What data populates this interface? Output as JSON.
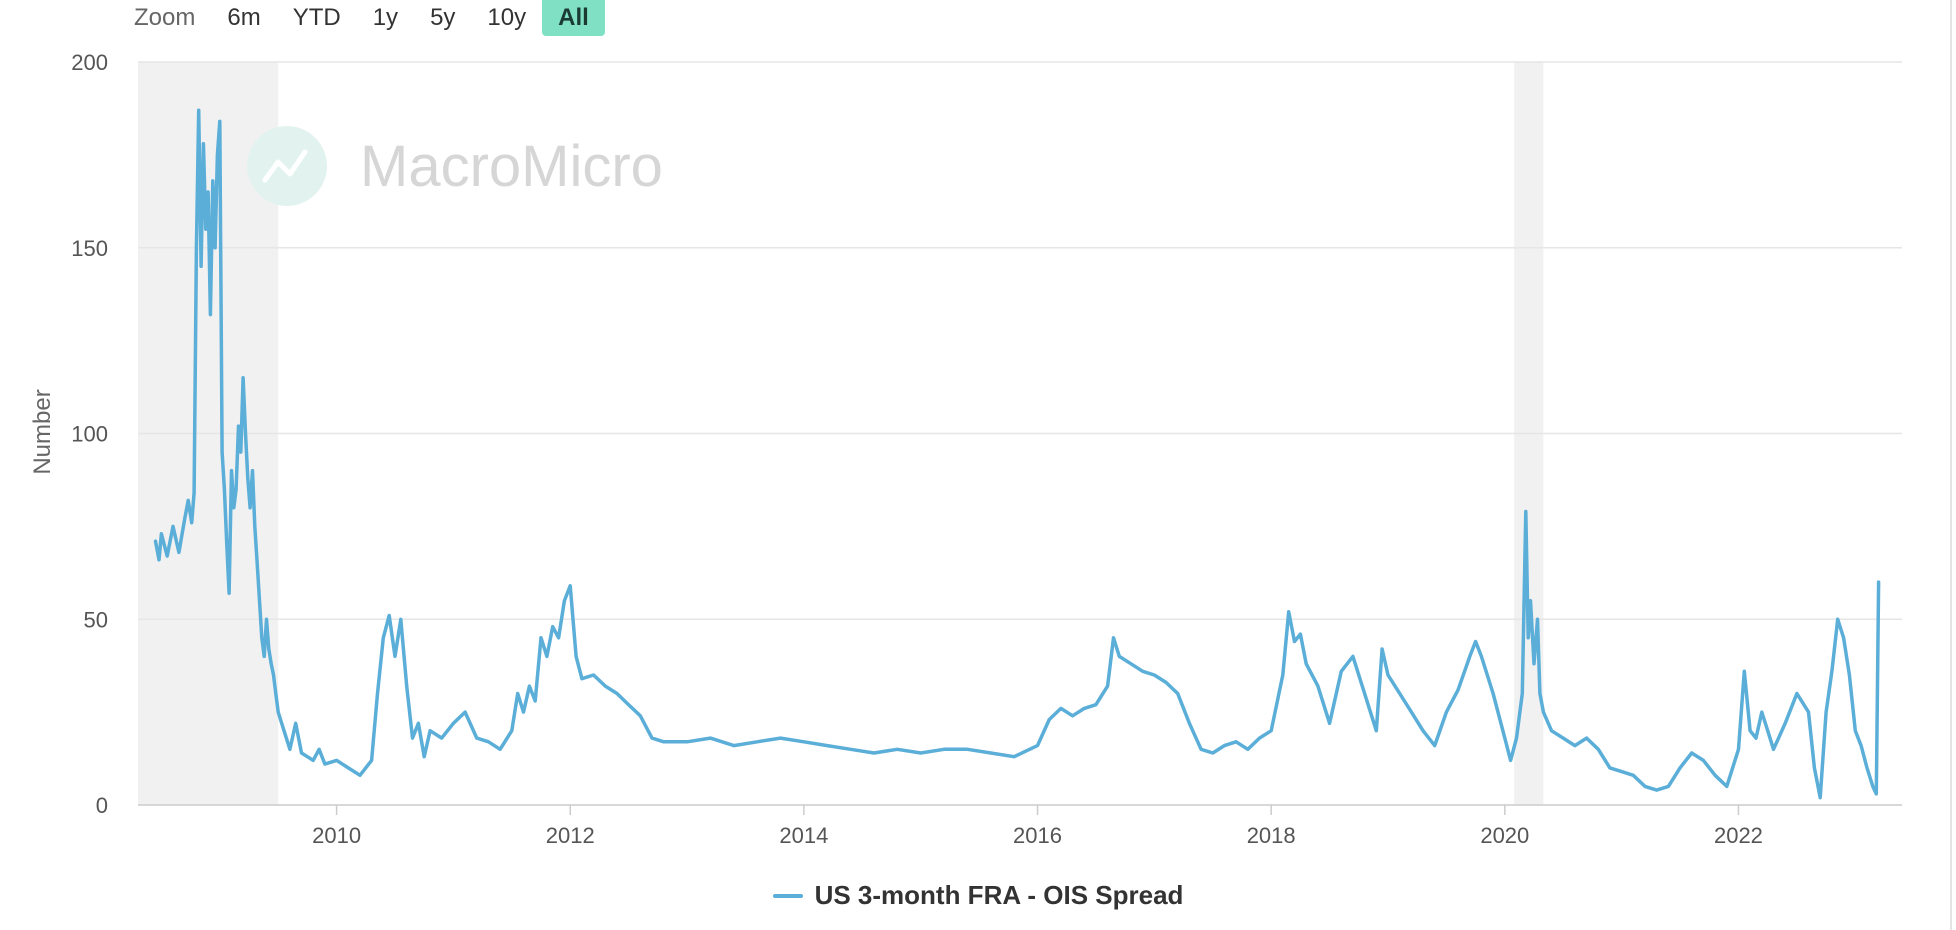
{
  "zoom": {
    "label": "Zoom",
    "buttons": [
      "6m",
      "YTD",
      "1y",
      "5y",
      "10y",
      "All"
    ],
    "active": "All"
  },
  "watermark": "MacroMicro",
  "colors": {
    "series": "#5aaed8",
    "recession": "#f1f1f1",
    "grid": "#e6e6e6",
    "active_zoom": "#7fe0c4"
  },
  "chart_data": {
    "type": "line",
    "title": "",
    "xlabel": "",
    "ylabel": "Number",
    "xlim": [
      2008.3,
      2023.4
    ],
    "ylim": [
      0,
      200
    ],
    "y_ticks": [
      0,
      50,
      100,
      150,
      200
    ],
    "x_ticks": [
      2010,
      2012,
      2014,
      2016,
      2018,
      2020,
      2022
    ],
    "grid": true,
    "legend_position": "bottom-center",
    "recession_bands": [
      [
        2008.3,
        2009.5
      ],
      [
        2020.08,
        2020.33
      ]
    ],
    "series": [
      {
        "name": "US 3-month FRA - OIS Spread",
        "color": "#5aaed8",
        "x": [
          2008.45,
          2008.48,
          2008.5,
          2008.55,
          2008.6,
          2008.65,
          2008.7,
          2008.73,
          2008.76,
          2008.78,
          2008.8,
          2008.82,
          2008.84,
          2008.86,
          2008.88,
          2008.9,
          2008.92,
          2008.94,
          2008.96,
          2008.98,
          2009.0,
          2009.02,
          2009.04,
          2009.06,
          2009.08,
          2009.1,
          2009.12,
          2009.14,
          2009.16,
          2009.18,
          2009.2,
          2009.22,
          2009.24,
          2009.26,
          2009.28,
          2009.3,
          2009.32,
          2009.34,
          2009.36,
          2009.38,
          2009.4,
          2009.42,
          2009.44,
          2009.46,
          2009.48,
          2009.5,
          2009.55,
          2009.6,
          2009.65,
          2009.7,
          2009.75,
          2009.8,
          2009.85,
          2009.9,
          2010.0,
          2010.1,
          2010.2,
          2010.3,
          2010.35,
          2010.4,
          2010.45,
          2010.5,
          2010.55,
          2010.6,
          2010.65,
          2010.7,
          2010.75,
          2010.8,
          2010.9,
          2011.0,
          2011.1,
          2011.2,
          2011.3,
          2011.4,
          2011.5,
          2011.55,
          2011.6,
          2011.65,
          2011.7,
          2011.75,
          2011.8,
          2011.85,
          2011.9,
          2011.95,
          2012.0,
          2012.05,
          2012.1,
          2012.2,
          2012.3,
          2012.4,
          2012.5,
          2012.6,
          2012.7,
          2012.8,
          2012.9,
          2013.0,
          2013.2,
          2013.4,
          2013.6,
          2013.8,
          2014.0,
          2014.2,
          2014.4,
          2014.6,
          2014.8,
          2015.0,
          2015.2,
          2015.4,
          2015.6,
          2015.8,
          2016.0,
          2016.1,
          2016.2,
          2016.3,
          2016.4,
          2016.5,
          2016.6,
          2016.65,
          2016.7,
          2016.8,
          2016.9,
          2017.0,
          2017.1,
          2017.2,
          2017.3,
          2017.4,
          2017.5,
          2017.6,
          2017.7,
          2017.8,
          2017.9,
          2018.0,
          2018.1,
          2018.15,
          2018.2,
          2018.25,
          2018.3,
          2018.4,
          2018.5,
          2018.6,
          2018.7,
          2018.8,
          2018.9,
          2018.95,
          2019.0,
          2019.1,
          2019.2,
          2019.3,
          2019.4,
          2019.5,
          2019.6,
          2019.7,
          2019.75,
          2019.8,
          2019.9,
          2020.0,
          2020.05,
          2020.1,
          2020.15,
          2020.18,
          2020.2,
          2020.22,
          2020.25,
          2020.28,
          2020.3,
          2020.33,
          2020.4,
          2020.5,
          2020.6,
          2020.7,
          2020.8,
          2020.9,
          2021.0,
          2021.1,
          2021.2,
          2021.3,
          2021.4,
          2021.5,
          2021.6,
          2021.7,
          2021.8,
          2021.9,
          2022.0,
          2022.05,
          2022.1,
          2022.15,
          2022.2,
          2022.25,
          2022.3,
          2022.4,
          2022.5,
          2022.6,
          2022.65,
          2022.7,
          2022.75,
          2022.8,
          2022.85,
          2022.9,
          2022.95,
          2023.0,
          2023.05,
          2023.1,
          2023.15,
          2023.18,
          2023.2
        ],
        "y": [
          71,
          66,
          73,
          67,
          75,
          68,
          77,
          82,
          76,
          84,
          150,
          187,
          145,
          178,
          155,
          165,
          132,
          168,
          150,
          175,
          184,
          95,
          85,
          70,
          57,
          90,
          80,
          85,
          102,
          95,
          115,
          100,
          88,
          80,
          90,
          75,
          65,
          55,
          45,
          40,
          50,
          42,
          38,
          35,
          30,
          25,
          20,
          15,
          22,
          14,
          13,
          12,
          15,
          11,
          12,
          10,
          8,
          12,
          30,
          45,
          51,
          40,
          50,
          32,
          18,
          22,
          13,
          20,
          18,
          22,
          25,
          18,
          17,
          15,
          20,
          30,
          25,
          32,
          28,
          45,
          40,
          48,
          45,
          55,
          59,
          40,
          34,
          35,
          32,
          30,
          27,
          24,
          18,
          17,
          17,
          17,
          18,
          16,
          17,
          18,
          17,
          16,
          15,
          14,
          15,
          14,
          15,
          15,
          14,
          13,
          16,
          23,
          26,
          24,
          26,
          27,
          32,
          45,
          40,
          38,
          36,
          35,
          33,
          30,
          22,
          15,
          14,
          16,
          17,
          15,
          18,
          20,
          35,
          52,
          44,
          46,
          38,
          32,
          22,
          36,
          40,
          30,
          20,
          42,
          35,
          30,
          25,
          20,
          16,
          25,
          31,
          40,
          44,
          40,
          30,
          18,
          12,
          18,
          30,
          79,
          45,
          55,
          38,
          50,
          30,
          25,
          20,
          18,
          16,
          18,
          15,
          10,
          9,
          8,
          5,
          4,
          5,
          10,
          14,
          12,
          8,
          5,
          15,
          36,
          20,
          18,
          25,
          20,
          15,
          22,
          30,
          25,
          10,
          2,
          25,
          36,
          50,
          45,
          35,
          20,
          16,
          10,
          5,
          3,
          60
        ]
      }
    ]
  }
}
